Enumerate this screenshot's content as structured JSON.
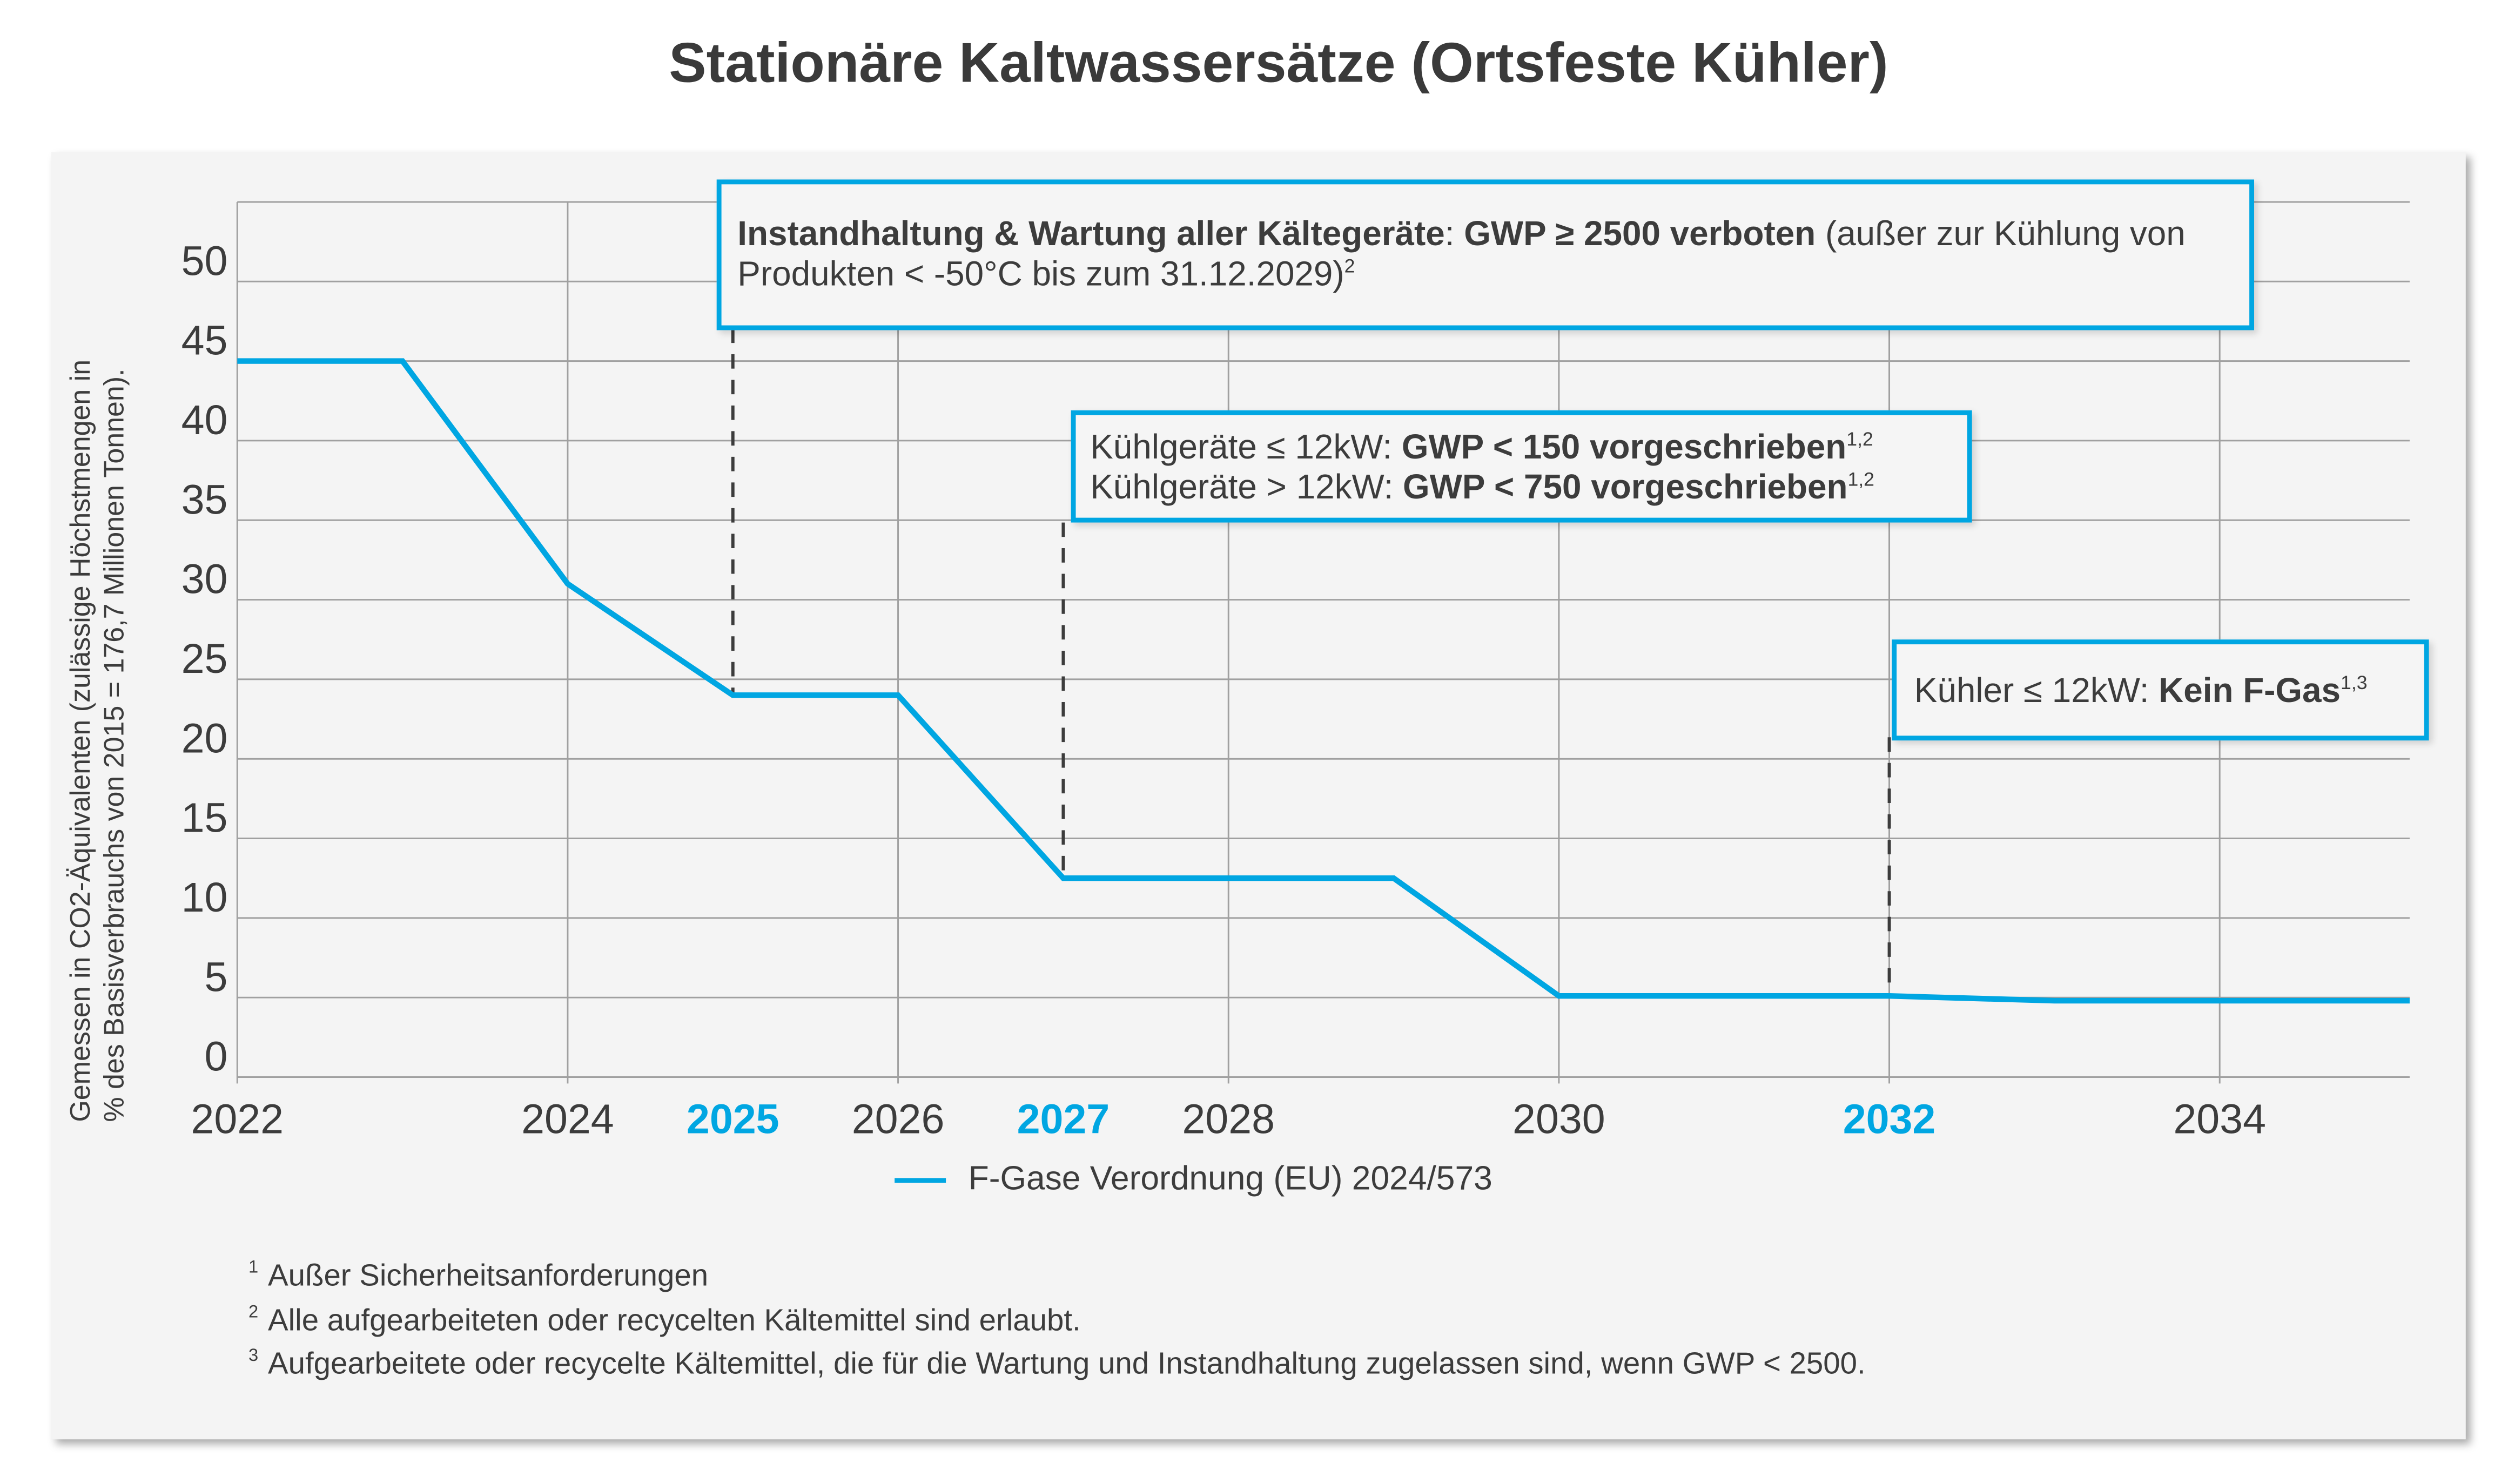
{
  "chart_data": {
    "type": "line",
    "title": "Stationäre Kaltwassersätze (Ortsfeste Kühler)",
    "ylabel_line1": "Gemessen in CO2-Äquivalenten (zulässige Höchstmengen in",
    "ylabel_line2": "% des Basisverbrauchs von 2015 = 176,7 Millionen Tonnen).",
    "xlim": [
      2022,
      2035.15
    ],
    "ylim": [
      0,
      55
    ],
    "grid": true,
    "x_ticks": [
      {
        "label": "2022",
        "value": 2022,
        "highlight": false
      },
      {
        "label": "2024",
        "value": 2024,
        "highlight": false
      },
      {
        "label": "2025",
        "value": 2025,
        "highlight": true
      },
      {
        "label": "2026",
        "value": 2026,
        "highlight": false
      },
      {
        "label": "2027",
        "value": 2027,
        "highlight": true
      },
      {
        "label": "2028",
        "value": 2028,
        "highlight": false
      },
      {
        "label": "2030",
        "value": 2030,
        "highlight": false
      },
      {
        "label": "2032",
        "value": 2032,
        "highlight": true
      },
      {
        "label": "2034",
        "value": 2034,
        "highlight": false
      }
    ],
    "x_gridlines": [
      2022,
      2024,
      2026,
      2028,
      2030,
      2032,
      2034
    ],
    "y_ticks": [
      0,
      5,
      10,
      15,
      20,
      25,
      30,
      35,
      40,
      45,
      50
    ],
    "legend_position": "bottom",
    "series": [
      {
        "name": "F-Gase Verordnung (EU) 2024/573",
        "color": "#00a6e2",
        "x": [
          2022,
          2023,
          2024,
          2025,
          2026,
          2027,
          2028,
          2029,
          2030,
          2032,
          2033,
          2035.15
        ],
        "y": [
          45,
          45,
          31,
          24,
          24,
          12.5,
          12.5,
          12.5,
          5.1,
          5.1,
          4.8,
          4.8
        ]
      }
    ],
    "annotations": [
      {
        "year": 2025,
        "value": 24,
        "normal1": "",
        "bold1": "Instandhaltung & Wartung aller Kältegeräte",
        "normal2": ": ",
        "bold2": "GWP ≥ 2500 verboten",
        "normal3": " (außer zur Kühlung von Produkten < -50°C bis zum 31.12.2029)",
        "sup": "2"
      },
      {
        "year": 2027,
        "value": 12.5,
        "line1_normal": "Kühlgeräte ≤ 12kW: ",
        "line1_bold": "GWP < 150 vorgeschrieben",
        "line1_sup": "1,2",
        "line2_normal": "Kühlgeräte > 12kW: ",
        "line2_bold": "GWP < 750 vorgeschrieben",
        "line2_sup": "1,2"
      },
      {
        "year": 2032,
        "value": 5.1,
        "normal": "Kühler ≤ 12kW: ",
        "bold": "Kein F-Gas",
        "sup": "1,3"
      }
    ],
    "colors": {
      "accent": "#00a6e2",
      "text": "#3c3c3c",
      "grid": "#a0a0a0",
      "background": "#f4f4f4"
    }
  },
  "footnotes": [
    {
      "mark": "1",
      "text": "Außer Sicherheitsanforderungen"
    },
    {
      "mark": "2",
      "text": "Alle aufgearbeiteten oder recycelten Kältemittel sind erlaubt."
    },
    {
      "mark": "3",
      "text": "Aufgearbeitete oder recycelte Kältemittel, die für die Wartung und Instandhaltung zugelassen sind, wenn GWP < 2500."
    }
  ]
}
